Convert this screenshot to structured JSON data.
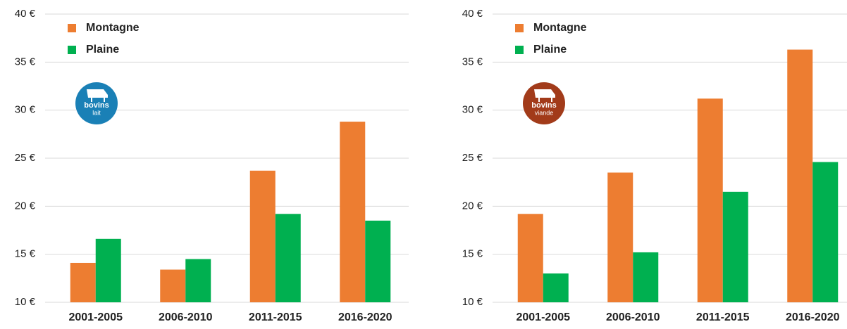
{
  "chart_data": [
    {
      "type": "bar",
      "categories": [
        "2001-2005",
        "2006-2010",
        "2011-2015",
        "2016-2020"
      ],
      "series": [
        {
          "name": "Montagne",
          "color": "#ed7d31",
          "values": [
            14.1,
            13.4,
            23.7,
            28.8
          ]
        },
        {
          "name": "Plaine",
          "color": "#00b050",
          "values": [
            16.6,
            14.5,
            19.2,
            18.5
          ]
        }
      ],
      "ylim": [
        10,
        40
      ],
      "yticks": [
        {
          "value": 10,
          "label": "10 €"
        },
        {
          "value": 15,
          "label": "15 €"
        },
        {
          "value": 20,
          "label": "20 €"
        },
        {
          "value": 25,
          "label": "25 €"
        },
        {
          "value": 30,
          "label": "30 €"
        },
        {
          "value": 35,
          "label": "35 €"
        },
        {
          "value": 40,
          "label": "40 €"
        }
      ],
      "grid": true,
      "legend": "top-left",
      "badge": [
        "bovins",
        "lait"
      ],
      "badge_color": "#1a80b6"
    },
    {
      "type": "bar",
      "categories": [
        "2001-2005",
        "2006-2010",
        "2011-2015",
        "2016-2020"
      ],
      "series": [
        {
          "name": "Montagne",
          "color": "#ed7d31",
          "values": [
            19.2,
            23.5,
            31.2,
            36.3
          ]
        },
        {
          "name": "Plaine",
          "color": "#00b050",
          "values": [
            13.0,
            15.2,
            21.5,
            24.6
          ]
        }
      ],
      "ylim": [
        10,
        40
      ],
      "yticks": [
        {
          "value": 10,
          "label": "10 €"
        },
        {
          "value": 15,
          "label": "15 €"
        },
        {
          "value": 20,
          "label": "20 €"
        },
        {
          "value": 25,
          "label": "25 €"
        },
        {
          "value": 30,
          "label": "30 €"
        },
        {
          "value": 35,
          "label": "35 €"
        },
        {
          "value": 40,
          "label": "40 €"
        }
      ],
      "grid": true,
      "legend": "top-left",
      "badge": [
        "bovins",
        "viande"
      ],
      "badge_color": "#a23b1a"
    }
  ]
}
